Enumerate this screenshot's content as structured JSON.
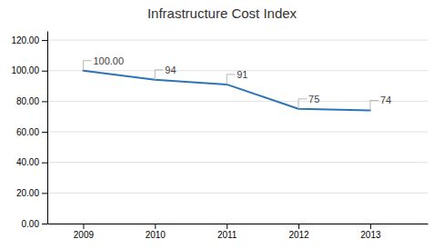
{
  "chart_data": {
    "type": "line",
    "title": "Infrastructure Cost Index",
    "x": [
      2009,
      2010,
      2011,
      2012,
      2013
    ],
    "values": [
      100.0,
      94,
      91,
      75,
      74
    ],
    "data_labels": true,
    "value_labels": [
      "100.00",
      "94",
      "91",
      "75",
      "74"
    ],
    "color": "#2e74b5",
    "xlim": [
      2008.5,
      2013.8
    ],
    "xticks": [
      2009,
      2010,
      2011,
      2012,
      2013
    ],
    "ylim": [
      0,
      126
    ],
    "yticks": [
      {
        "value": 0,
        "label": "0.00"
      },
      {
        "value": 20,
        "label": "20.00"
      },
      {
        "value": 40,
        "label": "40.00"
      },
      {
        "value": 60,
        "label": "60.00"
      },
      {
        "value": 80,
        "label": "80.00"
      },
      {
        "value": 100,
        "label": "100.00"
      },
      {
        "value": 120,
        "label": "120.00"
      }
    ],
    "grid": true
  }
}
